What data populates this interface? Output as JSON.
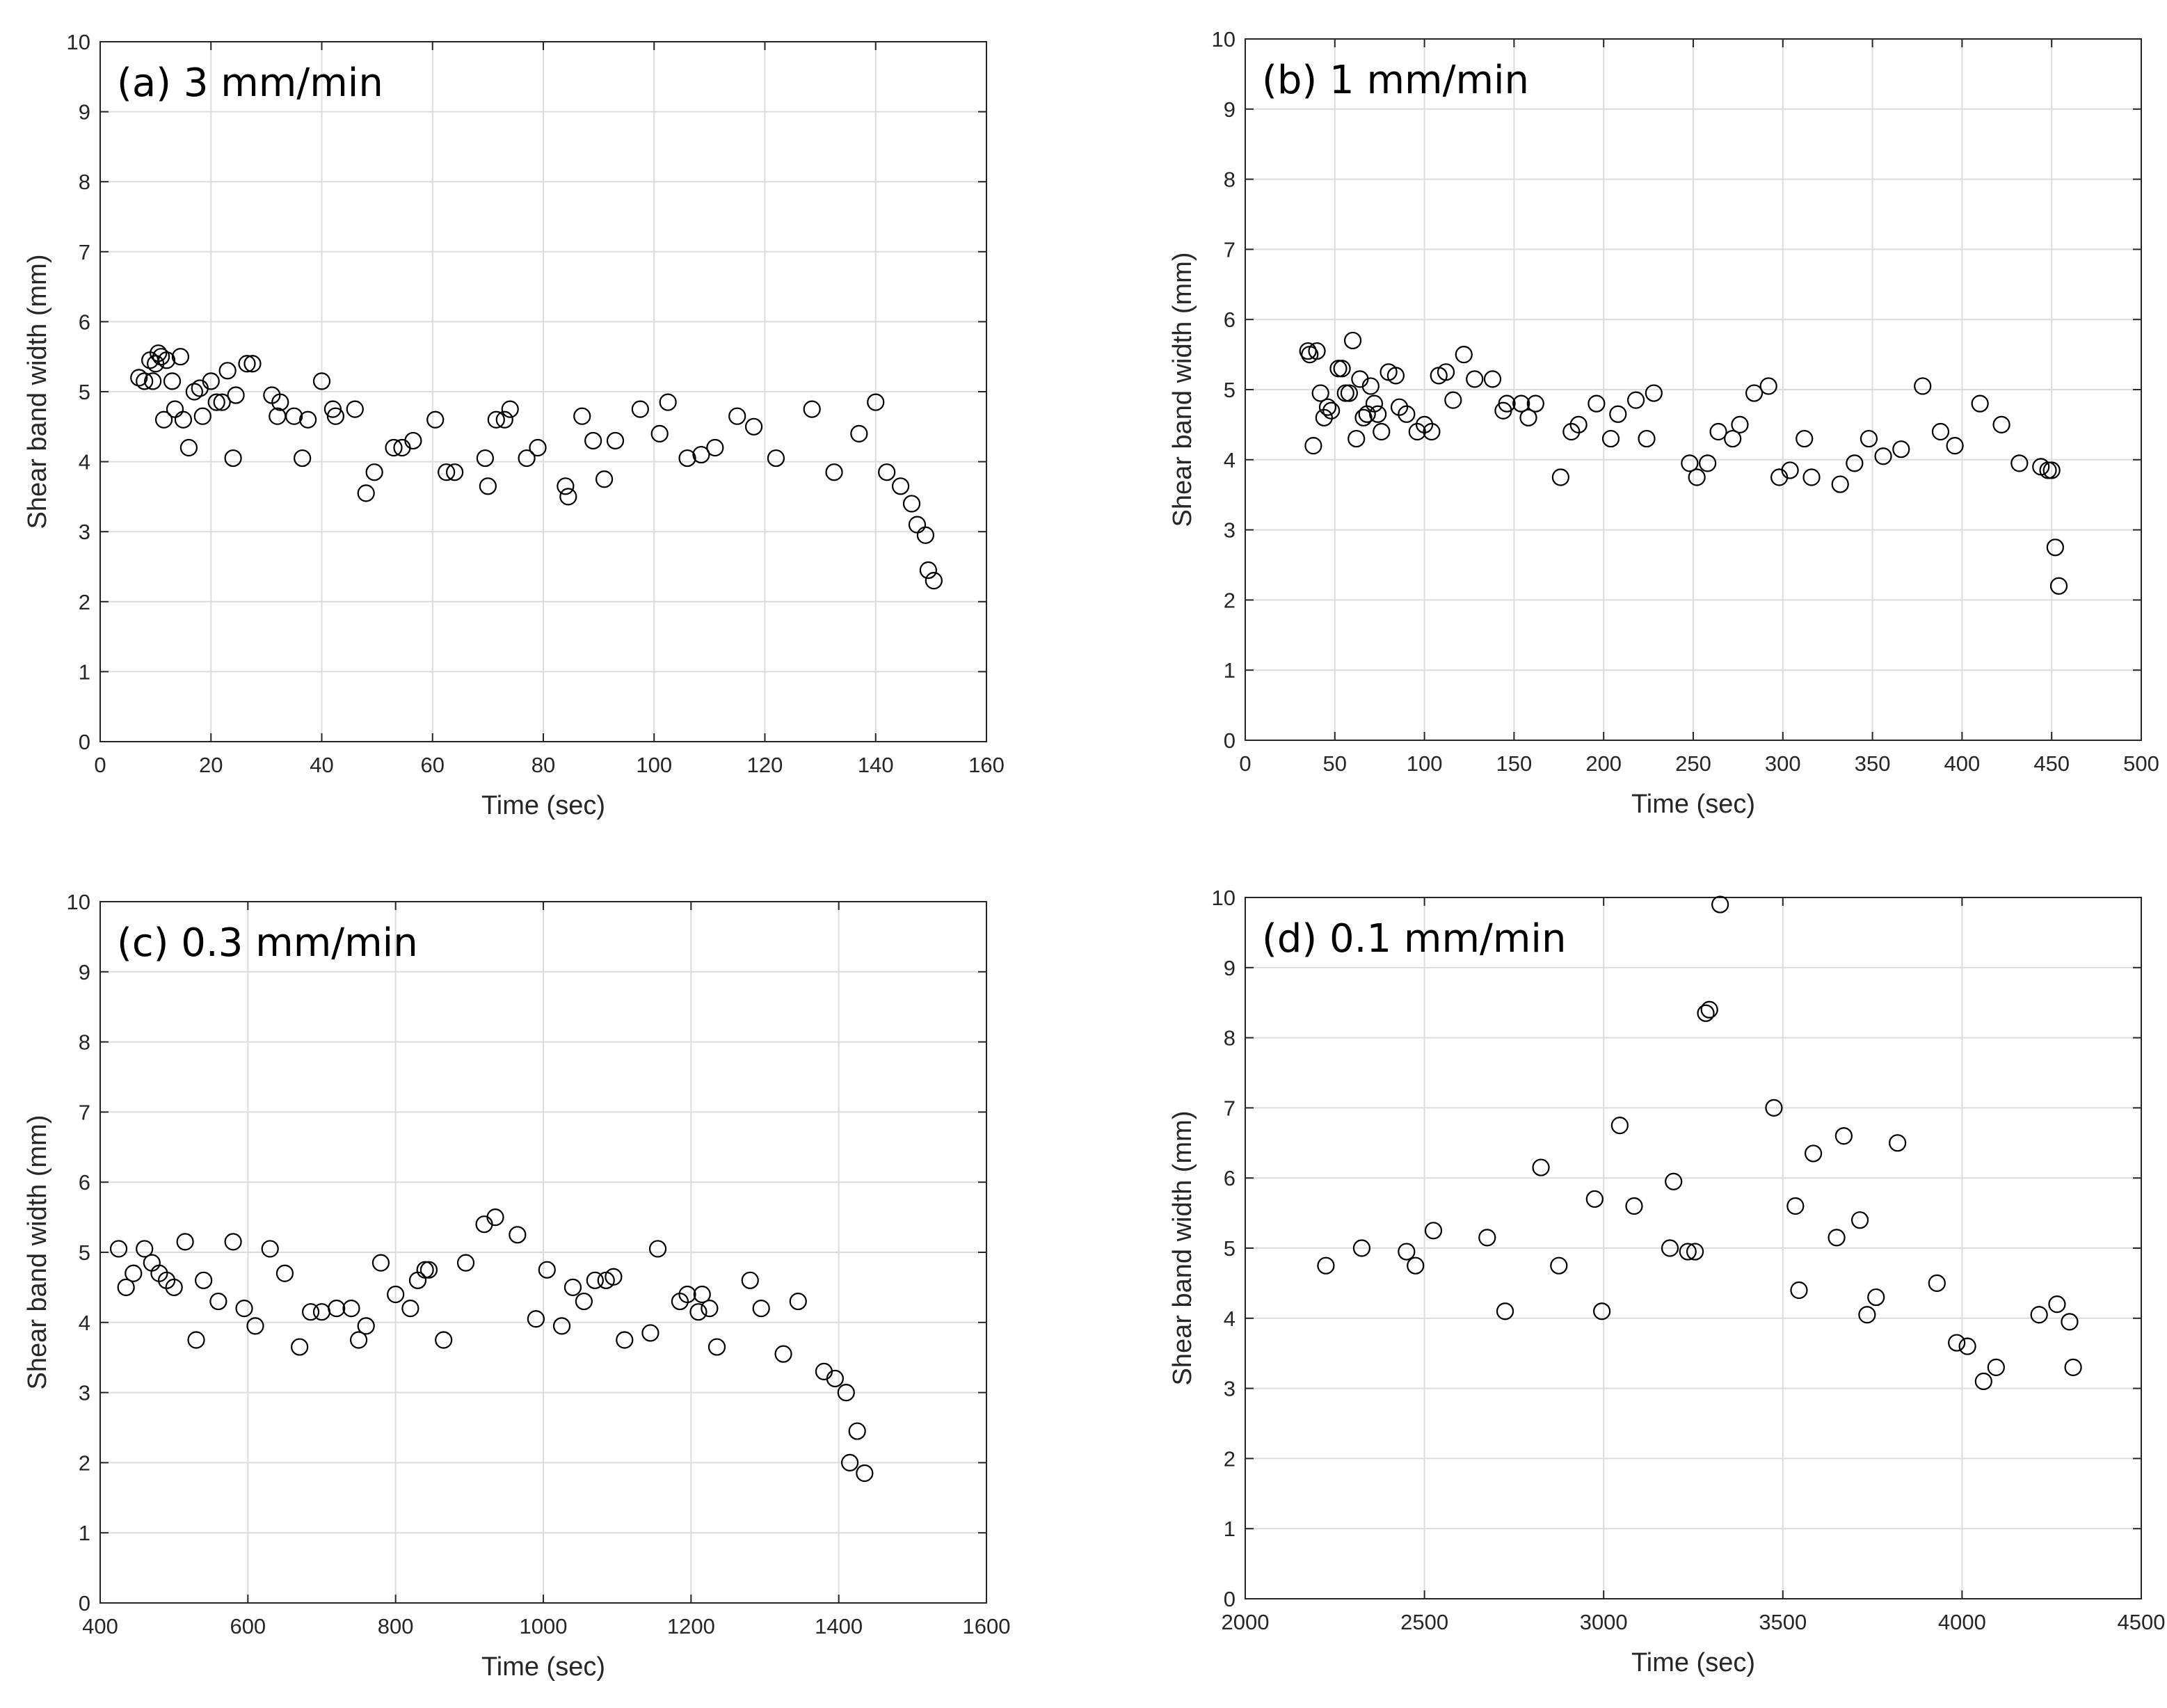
{
  "chart_data": [
    {
      "type": "scatter",
      "title": "(a) 3 mm/min",
      "xlabel": "Time (sec)",
      "ylabel": "Shear band width (mm)",
      "xlim": [
        0,
        160
      ],
      "ylim": [
        0,
        10
      ],
      "xticks": [
        0,
        20,
        40,
        60,
        80,
        100,
        120,
        140,
        160
      ],
      "yticks": [
        0,
        1,
        2,
        3,
        4,
        5,
        6,
        7,
        8,
        9,
        10
      ],
      "grid": true,
      "x": [
        7,
        8,
        9,
        9.5,
        10,
        10.5,
        11,
        11.5,
        12,
        13,
        13.5,
        14.5,
        15,
        16,
        17,
        18,
        18.5,
        20,
        21,
        22,
        23,
        24,
        24.5,
        26.5,
        27.5,
        31,
        32,
        32.5,
        35,
        36.5,
        37.5,
        40,
        42,
        42.5,
        46,
        48,
        49.5,
        53,
        54.5,
        56.5,
        60.5,
        62.5,
        64,
        69.5,
        70,
        71.5,
        73,
        74,
        77,
        79,
        84,
        84.5,
        87,
        89,
        91,
        93,
        97.5,
        101,
        102.5,
        106,
        108.5,
        111,
        115,
        118,
        122,
        128.5,
        132.5,
        137,
        140,
        142,
        144.5,
        146.5,
        147.5,
        149,
        149.5,
        150.5
      ],
      "y": [
        5.2,
        5.15,
        5.45,
        5.15,
        5.4,
        5.55,
        5.5,
        4.6,
        5.45,
        5.15,
        4.75,
        5.5,
        4.6,
        4.2,
        5.0,
        5.05,
        4.65,
        5.15,
        4.85,
        4.85,
        5.3,
        4.05,
        4.95,
        5.4,
        5.4,
        4.95,
        4.65,
        4.85,
        4.65,
        4.05,
        4.6,
        5.15,
        4.75,
        4.65,
        4.75,
        3.55,
        3.85,
        4.2,
        4.2,
        4.3,
        4.6,
        3.85,
        3.85,
        4.05,
        3.65,
        4.6,
        4.6,
        4.75,
        4.05,
        4.2,
        3.65,
        3.5,
        4.65,
        4.3,
        3.75,
        4.3,
        4.75,
        4.4,
        4.85,
        4.05,
        4.1,
        4.2,
        4.65,
        4.5,
        4.05,
        4.75,
        3.85,
        4.4,
        4.85,
        3.85,
        3.65,
        3.4,
        3.1,
        2.95,
        2.45,
        2.3
      ]
    },
    {
      "type": "scatter",
      "title": "(b) 1 mm/min",
      "xlabel": "Time (sec)",
      "ylabel": "Shear band width (mm)",
      "xlim": [
        0,
        500
      ],
      "ylim": [
        0,
        10
      ],
      "xticks": [
        0,
        50,
        100,
        150,
        200,
        250,
        300,
        350,
        400,
        450,
        500
      ],
      "yticks": [
        0,
        1,
        2,
        3,
        4,
        5,
        6,
        7,
        8,
        9,
        10
      ],
      "grid": true,
      "x": [
        35,
        36,
        38,
        40,
        42,
        44,
        46,
        48,
        52,
        54,
        56,
        58,
        60,
        62,
        64,
        66,
        68,
        70,
        72,
        74,
        76,
        80,
        84,
        86,
        90,
        96,
        100,
        104,
        108,
        112,
        116,
        122,
        128,
        138,
        144,
        146,
        154,
        158,
        162,
        176,
        182,
        186,
        196,
        204,
        208,
        218,
        224,
        228,
        248,
        252,
        258,
        264,
        272,
        276,
        284,
        292,
        298,
        304,
        312,
        316,
        332,
        340,
        348,
        356,
        366,
        378,
        388,
        396,
        410,
        422,
        432,
        444,
        448,
        450,
        452,
        454
      ],
      "y": [
        5.55,
        5.5,
        4.2,
        5.55,
        4.95,
        4.6,
        4.75,
        4.7,
        5.3,
        5.3,
        4.95,
        4.95,
        5.7,
        4.3,
        5.15,
        4.6,
        4.65,
        5.05,
        4.8,
        4.65,
        4.4,
        5.25,
        5.2,
        4.75,
        4.65,
        4.4,
        4.5,
        4.4,
        5.2,
        5.25,
        4.85,
        5.5,
        5.15,
        5.15,
        4.7,
        4.8,
        4.8,
        4.6,
        4.8,
        3.75,
        4.4,
        4.5,
        4.8,
        4.3,
        4.65,
        4.85,
        4.3,
        4.95,
        3.95,
        3.75,
        3.95,
        4.4,
        4.3,
        4.5,
        4.95,
        5.05,
        3.75,
        3.85,
        4.3,
        3.75,
        3.65,
        3.95,
        4.3,
        4.05,
        4.15,
        5.05,
        4.4,
        4.2,
        4.8,
        4.5,
        3.95,
        3.9,
        3.85,
        3.85,
        2.75,
        2.2
      ]
    },
    {
      "type": "scatter",
      "title": "(c) 0.3 mm/min",
      "xlabel": "Time (sec)",
      "ylabel": "Shear band width (mm)",
      "xlim": [
        400,
        1600
      ],
      "ylim": [
        0,
        10
      ],
      "xticks": [
        400,
        600,
        800,
        1000,
        1200,
        1400,
        1600
      ],
      "yticks": [
        0,
        1,
        2,
        3,
        4,
        5,
        6,
        7,
        8,
        9,
        10
      ],
      "grid": true,
      "x": [
        425,
        435,
        445,
        460,
        470,
        480,
        490,
        500,
        515,
        530,
        540,
        560,
        580,
        595,
        610,
        630,
        650,
        670,
        685,
        700,
        720,
        740,
        750,
        760,
        780,
        800,
        820,
        830,
        840,
        845,
        865,
        895,
        920,
        935,
        965,
        990,
        1005,
        1025,
        1040,
        1055,
        1070,
        1085,
        1095,
        1110,
        1145,
        1155,
        1185,
        1195,
        1210,
        1215,
        1225,
        1235,
        1280,
        1295,
        1325,
        1345,
        1380,
        1395,
        1410,
        1415,
        1425,
        1435
      ],
      "y": [
        5.05,
        4.5,
        4.7,
        5.05,
        4.85,
        4.7,
        4.6,
        4.5,
        5.15,
        3.75,
        4.6,
        4.3,
        5.15,
        4.2,
        3.95,
        5.05,
        4.7,
        3.65,
        4.15,
        4.15,
        4.2,
        4.2,
        3.75,
        3.95,
        4.85,
        4.4,
        4.2,
        4.6,
        4.75,
        4.75,
        3.75,
        4.85,
        5.4,
        5.5,
        5.25,
        4.05,
        4.75,
        3.95,
        4.5,
        4.3,
        4.6,
        4.6,
        4.65,
        3.75,
        3.85,
        5.05,
        4.3,
        4.4,
        4.15,
        4.4,
        4.2,
        3.65,
        4.6,
        4.2,
        3.55,
        4.3,
        3.3,
        3.2,
        3.0,
        2.0,
        2.45,
        1.85
      ]
    },
    {
      "type": "scatter",
      "title": "(d) 0.1 mm/min",
      "xlabel": "Time (sec)",
      "ylabel": "Shear band width (mm)",
      "xlim": [
        2000,
        4500
      ],
      "ylim": [
        0,
        10
      ],
      "xticks": [
        2000,
        2500,
        3000,
        3500,
        4000,
        4500
      ],
      "yticks": [
        0,
        1,
        2,
        3,
        4,
        5,
        6,
        7,
        8,
        9,
        10
      ],
      "grid": true,
      "x": [
        2225,
        2325,
        2450,
        2475,
        2525,
        2675,
        2725,
        2825,
        2875,
        2975,
        2995,
        3045,
        3085,
        3185,
        3195,
        3235,
        3255,
        3285,
        3295,
        3325,
        3475,
        3535,
        3545,
        3585,
        3650,
        3670,
        3715,
        3735,
        3760,
        3820,
        3930,
        3985,
        4015,
        4060,
        4095,
        4215,
        4265,
        4300,
        4310
      ],
      "y": [
        4.75,
        5.0,
        4.95,
        4.75,
        5.25,
        5.15,
        4.1,
        6.15,
        4.75,
        5.7,
        4.1,
        6.75,
        5.6,
        5.0,
        5.95,
        4.95,
        4.95,
        8.35,
        8.4,
        9.9,
        7.0,
        5.6,
        4.4,
        6.35,
        5.15,
        6.6,
        5.4,
        4.05,
        4.3,
        6.5,
        4.5,
        3.65,
        3.6,
        3.1,
        3.3,
        4.05,
        4.2,
        3.95,
        3.3
      ]
    }
  ]
}
